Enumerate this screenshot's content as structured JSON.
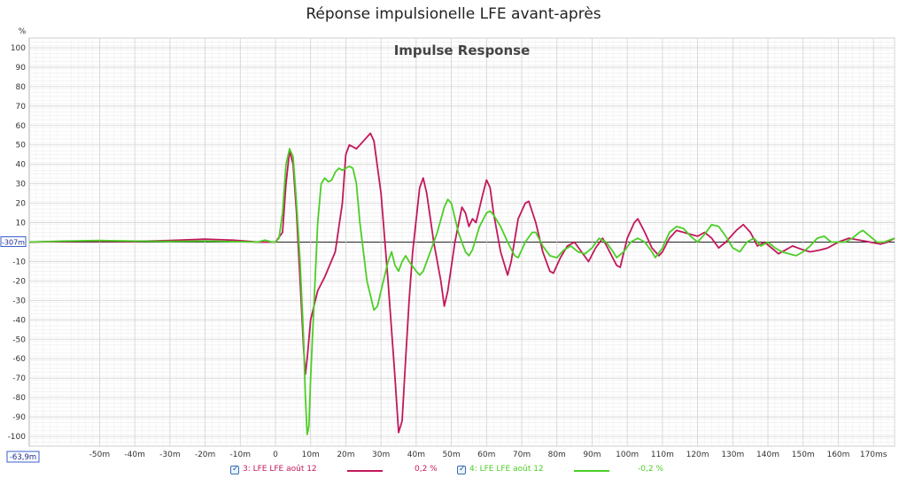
{
  "window_title": "Réponse impulsionelle LFE avant-après",
  "chart_data": {
    "type": "line",
    "title": "Impulse Response",
    "ylabel": "%",
    "xlabel": "",
    "xlim": [
      -70,
      176
    ],
    "ylim": [
      -105,
      105
    ],
    "x_ticks": [
      {
        "v": -50,
        "label": "-50m"
      },
      {
        "v": -40,
        "label": "-40m"
      },
      {
        "v": -30,
        "label": "-30m"
      },
      {
        "v": -20,
        "label": "-20m"
      },
      {
        "v": -10,
        "label": "-10m"
      },
      {
        "v": 0,
        "label": "0"
      },
      {
        "v": 10,
        "label": "10m"
      },
      {
        "v": 20,
        "label": "20m"
      },
      {
        "v": 30,
        "label": "30m"
      },
      {
        "v": 40,
        "label": "40m"
      },
      {
        "v": 50,
        "label": "50m"
      },
      {
        "v": 60,
        "label": "60m"
      },
      {
        "v": 70,
        "label": "70m"
      },
      {
        "v": 80,
        "label": "80m"
      },
      {
        "v": 90,
        "label": "90m"
      },
      {
        "v": 100,
        "label": "100m"
      },
      {
        "v": 110,
        "label": "110m"
      },
      {
        "v": 120,
        "label": "120m"
      },
      {
        "v": 130,
        "label": "130m"
      },
      {
        "v": 140,
        "label": "140m"
      },
      {
        "v": 150,
        "label": "150m"
      },
      {
        "v": 160,
        "label": "160m"
      },
      {
        "v": 170,
        "label": "170ms"
      }
    ],
    "y_ticks": [
      100,
      90,
      80,
      70,
      60,
      50,
      40,
      30,
      20,
      10,
      0,
      -10,
      -20,
      -30,
      -40,
      -50,
      -60,
      -70,
      -80,
      -90,
      -100
    ],
    "y_tick_labels": [
      "100",
      "90",
      "80",
      "70",
      "60",
      "50",
      "40",
      "30",
      "20",
      "10",
      "0",
      "-10",
      "-20",
      "-30",
      "-40",
      "-50",
      "-60",
      "-70",
      "-80",
      "-90",
      "-100"
    ],
    "x_min_label": "-63,9m",
    "y_cursor_label": "-307m",
    "grid": true,
    "series": [
      {
        "name": "3: LFE LFE août 12",
        "offset_label": "0,2 %",
        "color": "#c2185b",
        "points": [
          [
            -70,
            0
          ],
          [
            -55,
            0.5
          ],
          [
            -40,
            0.3
          ],
          [
            -30,
            0.8
          ],
          [
            -20,
            1.5
          ],
          [
            -12,
            1
          ],
          [
            -5,
            0
          ],
          [
            0,
            0
          ],
          [
            2,
            5
          ],
          [
            3,
            30
          ],
          [
            4,
            47
          ],
          [
            5,
            40
          ],
          [
            6,
            15
          ],
          [
            7,
            -20
          ],
          [
            8,
            -55
          ],
          [
            8.5,
            -68
          ],
          [
            9,
            -60
          ],
          [
            10,
            -40
          ],
          [
            12,
            -25
          ],
          [
            14,
            -18
          ],
          [
            17,
            -5
          ],
          [
            19,
            20
          ],
          [
            20,
            45
          ],
          [
            21,
            50
          ],
          [
            23,
            48
          ],
          [
            25,
            52
          ],
          [
            27,
            56
          ],
          [
            28,
            52
          ],
          [
            30,
            25
          ],
          [
            32,
            -20
          ],
          [
            34,
            -70
          ],
          [
            35,
            -98
          ],
          [
            36,
            -92
          ],
          [
            37,
            -60
          ],
          [
            38,
            -30
          ],
          [
            39,
            -5
          ],
          [
            41,
            28
          ],
          [
            42,
            33
          ],
          [
            43,
            25
          ],
          [
            45,
            0
          ],
          [
            47,
            -20
          ],
          [
            48,
            -33
          ],
          [
            49,
            -25
          ],
          [
            51,
            0
          ],
          [
            53,
            18
          ],
          [
            54,
            15
          ],
          [
            55,
            8
          ],
          [
            56,
            12
          ],
          [
            57,
            10
          ],
          [
            59,
            25
          ],
          [
            60,
            32
          ],
          [
            61,
            28
          ],
          [
            62,
            15
          ],
          [
            64,
            -5
          ],
          [
            66,
            -17
          ],
          [
            67,
            -10
          ],
          [
            69,
            12
          ],
          [
            71,
            20
          ],
          [
            72,
            21
          ],
          [
            74,
            10
          ],
          [
            76,
            -5
          ],
          [
            78,
            -15
          ],
          [
            79,
            -16
          ],
          [
            81,
            -8
          ],
          [
            83,
            -2
          ],
          [
            85,
            0
          ],
          [
            87,
            -5
          ],
          [
            89,
            -10
          ],
          [
            91,
            -3
          ],
          [
            93,
            2
          ],
          [
            95,
            -5
          ],
          [
            97,
            -12
          ],
          [
            98,
            -13
          ],
          [
            100,
            2
          ],
          [
            102,
            10
          ],
          [
            103,
            12
          ],
          [
            105,
            5
          ],
          [
            107,
            -3
          ],
          [
            109,
            -7
          ],
          [
            110,
            -5
          ],
          [
            112,
            2
          ],
          [
            114,
            6
          ],
          [
            116,
            5
          ],
          [
            118,
            4
          ],
          [
            120,
            3
          ],
          [
            122,
            5
          ],
          [
            124,
            2
          ],
          [
            126,
            -3
          ],
          [
            128,
            0
          ],
          [
            131,
            6
          ],
          [
            133,
            9
          ],
          [
            135,
            5
          ],
          [
            137,
            -2
          ],
          [
            139,
            0
          ],
          [
            141,
            -3
          ],
          [
            143,
            -6
          ],
          [
            145,
            -4
          ],
          [
            147,
            -2
          ],
          [
            150,
            -4
          ],
          [
            152,
            -5
          ],
          [
            155,
            -4
          ],
          [
            157,
            -3
          ],
          [
            160,
            0
          ],
          [
            163,
            2
          ],
          [
            166,
            1
          ],
          [
            169,
            0
          ],
          [
            172,
            -1
          ],
          [
            174,
            0
          ],
          [
            176,
            2
          ]
        ]
      },
      {
        "name": "4: LFE LFE août 12",
        "offset_label": "-0,2 %",
        "color": "#4cce26",
        "points": [
          [
            -70,
            0
          ],
          [
            -60,
            0.5
          ],
          [
            -50,
            0.8
          ],
          [
            -40,
            0.5
          ],
          [
            -30,
            0.3
          ],
          [
            -20,
            0.5
          ],
          [
            -10,
            0.2
          ],
          [
            -5,
            0
          ],
          [
            -3,
            1
          ],
          [
            -1,
            0
          ],
          [
            0,
            0
          ],
          [
            1,
            2
          ],
          [
            2,
            15
          ],
          [
            3,
            40
          ],
          [
            4,
            48
          ],
          [
            5,
            44
          ],
          [
            6,
            20
          ],
          [
            7,
            -10
          ],
          [
            8,
            -50
          ],
          [
            8.5,
            -80
          ],
          [
            9,
            -99
          ],
          [
            9.5,
            -95
          ],
          [
            10,
            -70
          ],
          [
            11,
            -30
          ],
          [
            12,
            10
          ],
          [
            13,
            30
          ],
          [
            14,
            33
          ],
          [
            15,
            31
          ],
          [
            16,
            32
          ],
          [
            17,
            36
          ],
          [
            18,
            38
          ],
          [
            19,
            37
          ],
          [
            21,
            39
          ],
          [
            22,
            38
          ],
          [
            23,
            30
          ],
          [
            24,
            10
          ],
          [
            26,
            -20
          ],
          [
            28,
            -35
          ],
          [
            29,
            -33
          ],
          [
            30,
            -25
          ],
          [
            32,
            -10
          ],
          [
            33,
            -5
          ],
          [
            34,
            -12
          ],
          [
            35,
            -15
          ],
          [
            36,
            -10
          ],
          [
            37,
            -7
          ],
          [
            38,
            -10
          ],
          [
            40,
            -15
          ],
          [
            41,
            -17
          ],
          [
            42,
            -15
          ],
          [
            44,
            -5
          ],
          [
            46,
            5
          ],
          [
            48,
            18
          ],
          [
            49,
            22
          ],
          [
            50,
            20
          ],
          [
            52,
            5
          ],
          [
            54,
            -5
          ],
          [
            55,
            -7
          ],
          [
            56,
            -4
          ],
          [
            58,
            8
          ],
          [
            60,
            15
          ],
          [
            61,
            16
          ],
          [
            62,
            14
          ],
          [
            64,
            8
          ],
          [
            66,
            0
          ],
          [
            68,
            -7
          ],
          [
            69,
            -8
          ],
          [
            71,
            0
          ],
          [
            73,
            5
          ],
          [
            74,
            5
          ],
          [
            76,
            -2
          ],
          [
            78,
            -7
          ],
          [
            80,
            -8
          ],
          [
            82,
            -4
          ],
          [
            84,
            -2
          ],
          [
            86,
            -5
          ],
          [
            88,
            -6
          ],
          [
            90,
            -3
          ],
          [
            92,
            2
          ],
          [
            94,
            0
          ],
          [
            96,
            -5
          ],
          [
            97,
            -8
          ],
          [
            99,
            -5
          ],
          [
            101,
            0
          ],
          [
            103,
            2
          ],
          [
            105,
            0
          ],
          [
            107,
            -5
          ],
          [
            108,
            -8
          ],
          [
            110,
            -3
          ],
          [
            112,
            5
          ],
          [
            114,
            8
          ],
          [
            116,
            7
          ],
          [
            118,
            3
          ],
          [
            120,
            0
          ],
          [
            122,
            4
          ],
          [
            124,
            9
          ],
          [
            126,
            8
          ],
          [
            128,
            3
          ],
          [
            130,
            -3
          ],
          [
            132,
            -5
          ],
          [
            134,
            0
          ],
          [
            136,
            2
          ],
          [
            138,
            -2
          ],
          [
            140,
            0
          ],
          [
            142,
            -3
          ],
          [
            144,
            -5
          ],
          [
            146,
            -6
          ],
          [
            148,
            -7
          ],
          [
            150,
            -5
          ],
          [
            152,
            -2
          ],
          [
            154,
            2
          ],
          [
            156,
            3
          ],
          [
            158,
            0
          ],
          [
            160,
            0
          ],
          [
            162,
            0
          ],
          [
            164,
            2
          ],
          [
            166,
            5
          ],
          [
            167,
            6
          ],
          [
            169,
            3
          ],
          [
            171,
            0
          ],
          [
            173,
            0
          ],
          [
            176,
            2
          ]
        ]
      }
    ]
  },
  "legend": {
    "item1_label": "3: LFE LFE août 12",
    "item1_value": "0,2 %",
    "item2_label": "4: LFE LFE août 12",
    "item2_value": "-0,2 %"
  }
}
